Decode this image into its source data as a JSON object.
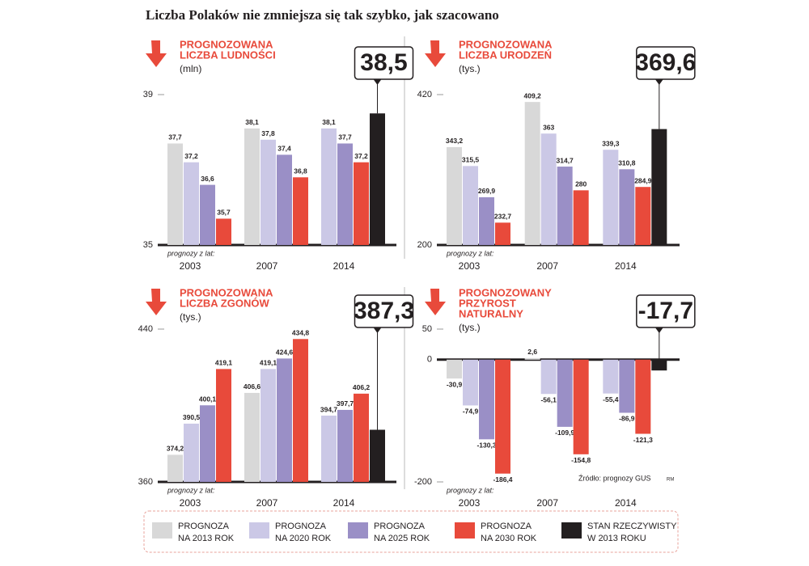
{
  "title": "Liczba Polaków nie zmniejsza się tak szybko, jak szacowano",
  "source": "Źródło: prognozy GUS",
  "author": "RM",
  "legend": [
    {
      "lines": [
        "PROGNOZA",
        "NA 2013 ROK"
      ],
      "color": "#d8d8d8"
    },
    {
      "lines": [
        "PROGNOZA",
        "NA 2020 ROK"
      ],
      "color": "#cbc8e6"
    },
    {
      "lines": [
        "PROGNOZA",
        "NA 2025 ROK"
      ],
      "color": "#9a8fc6"
    },
    {
      "lines": [
        "PROGNOZA",
        "NA 2030 ROK"
      ],
      "color": "#e84a3b"
    },
    {
      "lines": [
        "STAN RZECZYWISTY",
        "W 2013 ROKU"
      ],
      "color": "#231f20"
    }
  ],
  "chart_data": [
    {
      "type": "bar",
      "title": [
        "PROGNOZOWANA",
        "LICZBA LUDNOŚCI"
      ],
      "unit": "(mln)",
      "x_note": "prognozy z lat:",
      "categories": [
        "2003",
        "2007",
        "2014"
      ],
      "ylim": [
        35,
        39
      ],
      "yticks": [
        35,
        39
      ],
      "series": [
        {
          "color": "#d8d8d8",
          "values": [
            37.7,
            38.1,
            null
          ],
          "value_labels": [
            "37,7",
            "38,1",
            null
          ]
        },
        {
          "color": "#cbc8e6",
          "values": [
            37.2,
            37.8,
            38.1
          ],
          "value_labels": [
            "37,2",
            "37,8",
            "38,1"
          ]
        },
        {
          "color": "#9a8fc6",
          "values": [
            36.6,
            37.4,
            37.7
          ],
          "value_labels": [
            "36,6",
            "37,4",
            "37,7"
          ]
        },
        {
          "color": "#e84a3b",
          "values": [
            35.7,
            36.8,
            37.2
          ],
          "value_labels": [
            "35,7",
            "36,8",
            "37,2"
          ]
        },
        {
          "color": "#231f20",
          "callout": true,
          "values": [
            null,
            null,
            38.5
          ],
          "value_labels": [
            null,
            null,
            "38,5"
          ]
        }
      ]
    },
    {
      "type": "bar",
      "title": [
        "PROGNOZOWANA",
        "LICZBA URODZEŃ"
      ],
      "unit": "(tys.)",
      "x_note": "prognozy z lat:",
      "categories": [
        "2003",
        "2007",
        "2014"
      ],
      "ylim": [
        200,
        420
      ],
      "yticks": [
        200,
        420
      ],
      "series": [
        {
          "color": "#d8d8d8",
          "values": [
            343.2,
            409.2,
            null
          ],
          "value_labels": [
            "343,2",
            "409,2",
            null
          ]
        },
        {
          "color": "#cbc8e6",
          "values": [
            315.5,
            363,
            339.3
          ],
          "value_labels": [
            "315,5",
            "363",
            "339,3"
          ]
        },
        {
          "color": "#9a8fc6",
          "values": [
            269.9,
            314.7,
            310.8
          ],
          "value_labels": [
            "269,9",
            "314,7",
            "310,8"
          ]
        },
        {
          "color": "#e84a3b",
          "values": [
            232.7,
            280,
            284.9
          ],
          "value_labels": [
            "232,7",
            "280",
            "284,9"
          ]
        },
        {
          "color": "#231f20",
          "callout": true,
          "values": [
            null,
            null,
            369.6
          ],
          "value_labels": [
            null,
            null,
            "369,6"
          ]
        }
      ]
    },
    {
      "type": "bar",
      "title": [
        "PROGNOZOWANA",
        "LICZBA ZGONÓW"
      ],
      "unit": "(tys.)",
      "x_note": "prognozy z lat:",
      "categories": [
        "2003",
        "2007",
        "2014"
      ],
      "ylim": [
        360,
        440
      ],
      "yticks": [
        360,
        440
      ],
      "series": [
        {
          "color": "#d8d8d8",
          "values": [
            374.2,
            406.6,
            null
          ],
          "value_labels": [
            "374,2",
            "406,6",
            null
          ]
        },
        {
          "color": "#cbc8e6",
          "values": [
            390.5,
            419.1,
            394.7
          ],
          "value_labels": [
            "390,5",
            "419,1",
            "394,7"
          ]
        },
        {
          "color": "#9a8fc6",
          "values": [
            400.1,
            424.6,
            397.7
          ],
          "value_labels": [
            "400,1",
            "424,6",
            "397,7"
          ]
        },
        {
          "color": "#e84a3b",
          "values": [
            419.1,
            434.8,
            406.2
          ],
          "value_labels": [
            "419,1",
            "434,8",
            "406,2"
          ]
        },
        {
          "color": "#231f20",
          "callout": true,
          "values": [
            null,
            null,
            387.3
          ],
          "value_labels": [
            null,
            null,
            "387,3"
          ]
        }
      ]
    },
    {
      "type": "bar",
      "title": [
        "PROGNOZOWANY",
        "PRZYROST",
        "NATURALNY"
      ],
      "unit": "(tys.)",
      "x_note": "prognozy z lat:",
      "categories": [
        "2003",
        "2007",
        "2014"
      ],
      "ylim": [
        -200,
        50
      ],
      "yticks": [
        -200,
        0,
        50
      ],
      "series": [
        {
          "color": "#d8d8d8",
          "values": [
            -30.9,
            2.6,
            null
          ],
          "value_labels": [
            "-30,9",
            "2,6",
            null
          ]
        },
        {
          "color": "#cbc8e6",
          "values": [
            -74.9,
            -56.1,
            -55.4
          ],
          "value_labels": [
            "-74,9",
            "-56,1",
            "-55,4"
          ]
        },
        {
          "color": "#9a8fc6",
          "values": [
            -130.3,
            -109.9,
            -86.9
          ],
          "value_labels": [
            "-130,3",
            "-109,9",
            "-86,9"
          ]
        },
        {
          "color": "#e84a3b",
          "values": [
            -186.4,
            -154.8,
            -121.3
          ],
          "value_labels": [
            "-186,4",
            "-154,8",
            "-121,3"
          ]
        },
        {
          "color": "#231f20",
          "callout": true,
          "values": [
            null,
            null,
            -17.7
          ],
          "value_labels": [
            null,
            null,
            "-17,7"
          ]
        }
      ]
    }
  ]
}
